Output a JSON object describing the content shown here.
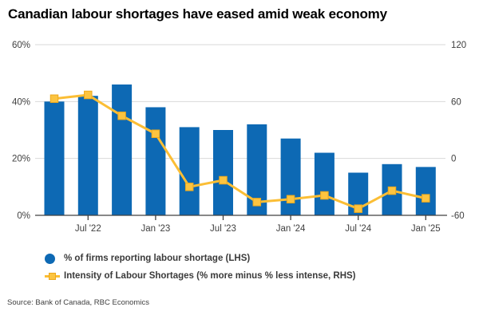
{
  "title": "Canadian labour shortages have eased amid weak economy",
  "source": "Source: Bank of Canada, RBC Economics",
  "colors": {
    "bar_blue": "#0d69b4",
    "line_yellow": "#fbbe35",
    "marker_yellow_fill": "#fcc440",
    "marker_yellow_stroke": "#eda81c",
    "gridline": "#d9d9d9",
    "axis_line": "#404040",
    "axis_text": "#404040",
    "title_text": "#000000",
    "legend_text": "#3a3a3a"
  },
  "legend": [
    {
      "label": "% of firms reporting labour shortage (LHS)",
      "marker": "circle-icon",
      "color": "#0d69b4"
    },
    {
      "label": "Intensity of Labour Shortages (% more minus % less intense, RHS)",
      "marker": "square-line-icon",
      "color": "#fbbe35"
    }
  ],
  "chart_data": {
    "type": "bar",
    "subtype": "bar-and-line-dual-axis",
    "n_points": 12,
    "bar_series": {
      "name": "% of firms reporting labour shortage (LHS)",
      "axis": "left",
      "color": "#0d69b4",
      "values": [
        40,
        42,
        46,
        38,
        31,
        30,
        32,
        27,
        22,
        15,
        18,
        17
      ]
    },
    "line_series": {
      "name": "Intensity of Labour Shortages (% more minus % less intense, RHS)",
      "axis": "right",
      "color": "#fbbe35",
      "marker": "square",
      "values": [
        63,
        67,
        45,
        26,
        -30,
        -23,
        -46,
        -43,
        -39,
        -53,
        -34,
        -42
      ]
    },
    "left_axis": {
      "min": 0,
      "max": 60,
      "tick_labels": [
        "0%",
        "20%",
        "40%",
        "60%"
      ],
      "tick_values": [
        0,
        20,
        40,
        60
      ]
    },
    "right_axis": {
      "min": -60,
      "max": 120,
      "tick_labels": [
        "-60",
        "0",
        "60",
        "120"
      ],
      "tick_values": [
        -60,
        0,
        60,
        120
      ]
    },
    "x_axis": {
      "tick_labels": [
        "Jul '22",
        "Jan '23",
        "Jul '23",
        "Jan '24",
        "Jul '24",
        "Jan '25"
      ],
      "tick_bar_indices": [
        1,
        3,
        5,
        7,
        9,
        11
      ]
    },
    "grid": "horizontal-light",
    "legend_position": "bottom-left"
  }
}
